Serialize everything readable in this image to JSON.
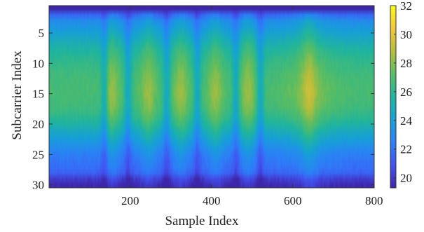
{
  "chart_data": {
    "type": "heatmap",
    "title": "",
    "xlabel": "Sample Index",
    "ylabel": "Subcarrier Index",
    "x_range": [
      1,
      800
    ],
    "y_range": [
      1,
      30
    ],
    "x_ticks": [
      200,
      400,
      600,
      800
    ],
    "y_ticks": [
      5,
      10,
      15,
      20,
      25,
      30
    ],
    "colorbar": {
      "range": [
        19.3,
        32
      ],
      "ticks": [
        20,
        22,
        24,
        26,
        28,
        30,
        32
      ]
    },
    "colormap": [
      "#3e26a8",
      "#4352f0",
      "#2c80f8",
      "#16a0d8",
      "#1fb59d",
      "#58bd63",
      "#b5bd3b",
      "#f3c73a",
      "#f9fb15"
    ],
    "description_values": {
      "subcarrier_profile": [
        20,
        24,
        25.5,
        26,
        26.6,
        27.1,
        27.6,
        28,
        28.3,
        28.6,
        28.8,
        29,
        29.1,
        29.2,
        29.2,
        29.1,
        29,
        28.7,
        28.3,
        27.8,
        27.2,
        26.6,
        26,
        25.4,
        24.9,
        24.5,
        24.3,
        23.8,
        22.5,
        21.8
      ],
      "sample_bright_centers": [
        155,
        245,
        325,
        410,
        490,
        640
      ],
      "sample_dark_centers": [
        137,
        195,
        290,
        365,
        460,
        520
      ],
      "baseline_offset": -2.4
    }
  }
}
